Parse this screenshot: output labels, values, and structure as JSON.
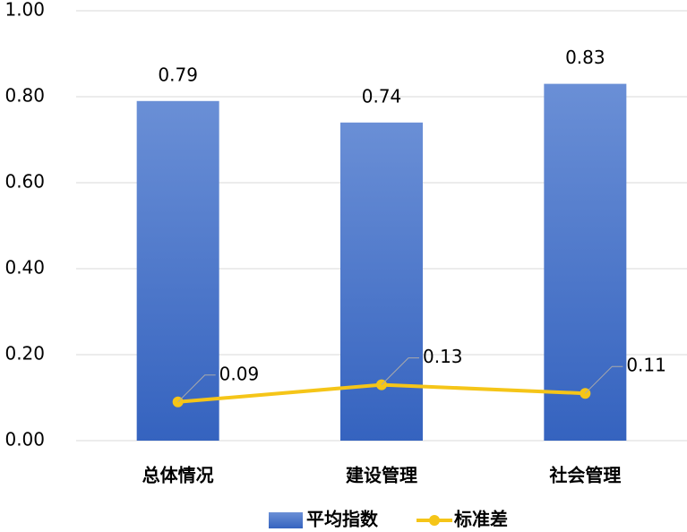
{
  "chart_data": {
    "type": "bar",
    "categories": [
      "总体情况",
      "建设管理",
      "社会管理"
    ],
    "series": [
      {
        "name": "平均指数",
        "type": "bar",
        "color": "#4472c4",
        "values": [
          0.79,
          0.74,
          0.83
        ]
      },
      {
        "name": "标准差",
        "type": "line",
        "color": "#f5c518",
        "values": [
          0.09,
          0.13,
          0.11
        ]
      }
    ],
    "ylim": [
      0,
      1
    ],
    "yticks": [
      {
        "value": 0,
        "label": "0.00"
      },
      {
        "value": 0.2,
        "label": "0.20"
      },
      {
        "value": 0.4,
        "label": "0.40"
      },
      {
        "value": 0.6,
        "label": "0.60"
      },
      {
        "value": 0.8,
        "label": "0.80"
      },
      {
        "value": 1,
        "label": "1.00"
      }
    ],
    "grid": true,
    "legend": "bottom"
  }
}
